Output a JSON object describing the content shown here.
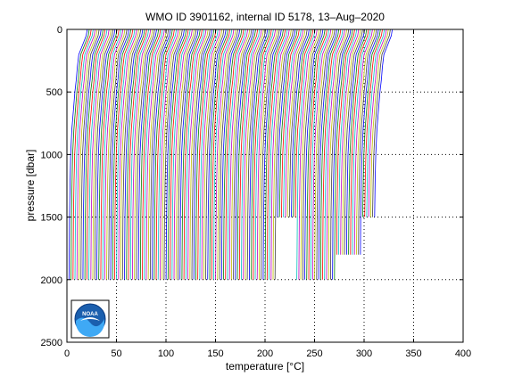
{
  "chart_data": {
    "type": "line",
    "title": "WMO ID 3901162, internal ID 5178, 13–Aug–2020",
    "xlabel": "temperature [°C]",
    "ylabel": "pressure [dbar]",
    "xlim": [
      0,
      400
    ],
    "ylim": [
      2500,
      0
    ],
    "y_reversed": true,
    "grid": "dotted",
    "xticks": [
      0,
      50,
      100,
      150,
      200,
      250,
      300,
      350,
      400
    ],
    "xtick_labels": [
      "0",
      "50",
      "100",
      "150",
      "200",
      "250",
      "300",
      "350",
      "400"
    ],
    "yticks": [
      0,
      500,
      1000,
      1500,
      2000,
      2500
    ],
    "ytick_labels": [
      "0",
      "500",
      "1000",
      "1500",
      "2000",
      "2500"
    ],
    "profile_shape": {
      "pressure": [
        0,
        50,
        100,
        150,
        200,
        300,
        400,
        500,
        600,
        800,
        1000,
        1200,
        1500,
        1800,
        2000
      ],
      "temperature_offset": [
        20.5,
        19.5,
        17,
        14.5,
        12,
        10.5,
        9.5,
        8,
        7,
        5,
        3.8,
        3.2,
        2.6,
        2.3,
        2.1
      ]
    },
    "series_count": 155,
    "series_offset_step": 2,
    "depth_profiles": [
      {
        "from_offset": 0,
        "to_offset": 210,
        "max_pressure": 2000
      },
      {
        "from_offset": 210,
        "to_offset": 230,
        "max_pressure": 1750
      },
      {
        "from_offset": 230,
        "to_offset": 270,
        "max_pressure": 2000
      },
      {
        "from_offset": 270,
        "to_offset": 295,
        "max_pressure": 1800
      },
      {
        "from_offset": 295,
        "to_offset": 312,
        "max_pressure": 1650
      },
      {
        "from_offset": 312,
        "to_offset": 999,
        "max_pressure": 1550
      }
    ],
    "series_colors": [
      "#0000ff",
      "#008000",
      "#ff0000",
      "#00bfbf",
      "#bf00bf",
      "#bfbf00",
      "#404040"
    ],
    "logo": {
      "text": "NOAA"
    }
  }
}
